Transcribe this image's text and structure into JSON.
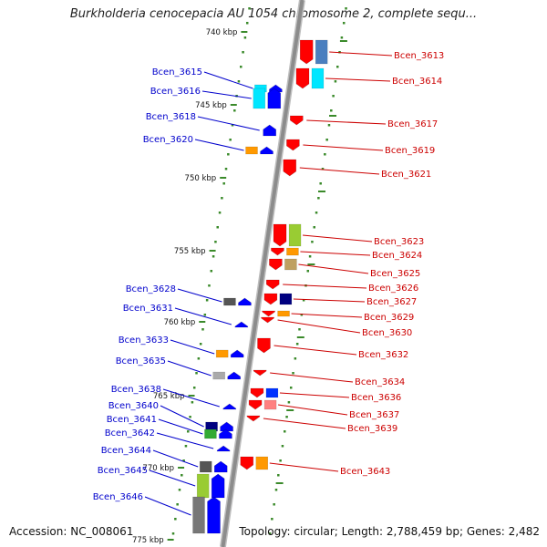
{
  "title": "Burkholderia cenocepacia AU 1054 chromosome 2, complete sequ...",
  "accession": "Accession: NC_008061",
  "summary": "Topology: circular; Length: 2,788,459 bp; Genes: 2,482",
  "colors": {
    "label_plus": "#0000cc",
    "label_minus": "#cc0000",
    "backbone": "#8c8c8c",
    "tick": "#3a8a2a",
    "scale_text": "#111111"
  },
  "scale_ticks": [
    {
      "label": "740 kbp"
    },
    {
      "label": "745 kbp"
    },
    {
      "label": "750 kbp"
    },
    {
      "label": "755 kbp"
    },
    {
      "label": "760 kbp"
    },
    {
      "label": "765 kbp"
    },
    {
      "label": "770 kbp"
    },
    {
      "label": "775 kbp"
    }
  ],
  "genes": [
    {
      "name": "Bcen_3613",
      "strand": "minus",
      "color": "#ff0000",
      "color2": "#4a7fbf"
    },
    {
      "name": "Bcen_3614",
      "strand": "minus",
      "color": "#ff0000",
      "color2": "#00e6ff"
    },
    {
      "name": "Bcen_3615",
      "strand": "plus",
      "color": "#0000ff",
      "color2": "#00e6ff"
    },
    {
      "name": "Bcen_3616",
      "strand": "plus",
      "color": "#0000ff",
      "color2": "#00e6ff"
    },
    {
      "name": "Bcen_3617",
      "strand": "minus",
      "color": "#ff0000",
      "color2": ""
    },
    {
      "name": "Bcen_3618",
      "strand": "plus",
      "color": "#0000ff",
      "color2": ""
    },
    {
      "name": "Bcen_3619",
      "strand": "minus",
      "color": "#ff0000",
      "color2": ""
    },
    {
      "name": "Bcen_3620",
      "strand": "plus",
      "color": "#0000ff",
      "color2": "#ff9900"
    },
    {
      "name": "Bcen_3621",
      "strand": "minus",
      "color": "#ff0000",
      "color2": ""
    },
    {
      "name": "Bcen_3623",
      "strand": "minus",
      "color": "#ff0000",
      "color2": "#99cc33"
    },
    {
      "name": "Bcen_3624",
      "strand": "minus",
      "color": "#ff0000",
      "color2": "#ff9900"
    },
    {
      "name": "Bcen_3625",
      "strand": "minus",
      "color": "#ff0000",
      "color2": "#bfa060"
    },
    {
      "name": "Bcen_3626",
      "strand": "minus",
      "color": "#ff0000",
      "color2": ""
    },
    {
      "name": "Bcen_3627",
      "strand": "minus",
      "color": "#ff0000",
      "color2": "#000080"
    },
    {
      "name": "Bcen_3628",
      "strand": "plus",
      "color": "#0000ff",
      "color2": "#555555"
    },
    {
      "name": "Bcen_3629",
      "strand": "minus",
      "color": "#ff0000",
      "color2": "#ff9900"
    },
    {
      "name": "Bcen_3630",
      "strand": "minus",
      "color": "#ff0000",
      "color2": ""
    },
    {
      "name": "Bcen_3631",
      "strand": "plus",
      "color": "#0000ff",
      "color2": ""
    },
    {
      "name": "Bcen_3632",
      "strand": "minus",
      "color": "#ff0000",
      "color2": ""
    },
    {
      "name": "Bcen_3633",
      "strand": "plus",
      "color": "#0000ff",
      "color2": "#ff9900"
    },
    {
      "name": "Bcen_3634",
      "strand": "minus",
      "color": "#ff0000",
      "color2": ""
    },
    {
      "name": "Bcen_3635",
      "strand": "plus",
      "color": "#0000ff",
      "color2": "#aaaaaa"
    },
    {
      "name": "Bcen_3636",
      "strand": "minus",
      "color": "#ff0000",
      "color2": "#0033ff"
    },
    {
      "name": "Bcen_3637",
      "strand": "minus",
      "color": "#ff0000",
      "color2": "#ff8080"
    },
    {
      "name": "Bcen_3638",
      "strand": "plus",
      "color": "#0000ff",
      "color2": ""
    },
    {
      "name": "Bcen_3639",
      "strand": "minus",
      "color": "#ff0000",
      "color2": ""
    },
    {
      "name": "Bcen_3640",
      "strand": "plus",
      "color": "#0000ff",
      "color2": "#000080"
    },
    {
      "name": "Bcen_3641",
      "strand": "plus",
      "color": "#0000ff",
      "color2": "#33aa33"
    },
    {
      "name": "Bcen_3642",
      "strand": "plus",
      "color": "#0000ff",
      "color2": ""
    },
    {
      "name": "Bcen_3643",
      "strand": "minus",
      "color": "#ff0000",
      "color2": "#ff9900"
    },
    {
      "name": "Bcen_3644",
      "strand": "plus",
      "color": "#0000ff",
      "color2": "#555555"
    },
    {
      "name": "Bcen_3645",
      "strand": "plus",
      "color": "#0000ff",
      "color2": "#99cc33"
    },
    {
      "name": "Bcen_3646",
      "strand": "plus",
      "color": "#0000ff",
      "color2": "#777777"
    }
  ]
}
